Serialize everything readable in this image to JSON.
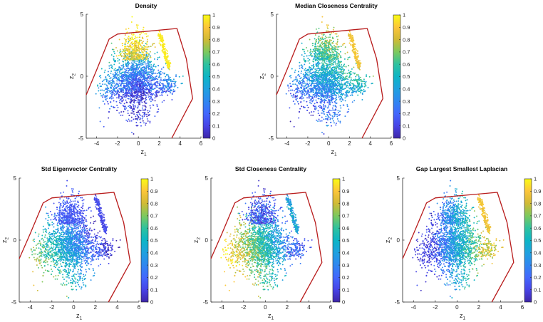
{
  "chart_data": [
    {
      "type": "scatter",
      "title": "Density",
      "xlabel": "z",
      "xlabel_sub": "1",
      "ylabel": "z",
      "ylabel_sub": "2",
      "xlim": [
        -5,
        6
      ],
      "ylim": [
        -5,
        5
      ],
      "xticks": [
        "-4",
        "-2",
        "0",
        "2",
        "4",
        "6"
      ],
      "yticks": [
        "-5",
        "0",
        "5"
      ],
      "colorbar_ticks": [
        "0",
        "0.1",
        "0.2",
        "0.3",
        "0.4",
        "0.5",
        "0.6",
        "0.7",
        "0.8",
        "0.9",
        "1"
      ],
      "boundary": [
        [
          -5.0,
          -1.5
        ],
        [
          -4.0,
          0.5
        ],
        [
          -2.8,
          3.0
        ],
        [
          -2.0,
          3.4
        ],
        [
          3.7,
          3.85
        ],
        [
          4.6,
          1.4
        ],
        [
          5.2,
          -1.8
        ],
        [
          3.2,
          -5.0
        ]
      ],
      "color_mode": "density"
    },
    {
      "type": "scatter",
      "title": "Median Closeness Centrality",
      "xlabel": "z",
      "xlabel_sub": "1",
      "ylabel": "z",
      "ylabel_sub": "2",
      "xlim": [
        -5,
        6
      ],
      "ylim": [
        -5,
        5
      ],
      "xticks": [
        "-4",
        "-2",
        "0",
        "2",
        "4",
        "6"
      ],
      "yticks": [
        "-5",
        "0",
        "5"
      ],
      "colorbar_ticks": [
        "0",
        "0.1",
        "0.2",
        "0.3",
        "0.4",
        "0.5",
        "0.6",
        "0.7",
        "0.8",
        "0.9",
        "1"
      ],
      "boundary": [
        [
          -5.0,
          -1.5
        ],
        [
          -4.0,
          0.5
        ],
        [
          -2.8,
          3.0
        ],
        [
          -2.0,
          3.4
        ],
        [
          3.7,
          3.85
        ],
        [
          4.6,
          1.4
        ],
        [
          5.2,
          -1.8
        ],
        [
          3.2,
          -5.0
        ]
      ],
      "color_mode": "closeness"
    },
    {
      "type": "scatter",
      "title": "Std Eigenvector Centrality",
      "xlabel": "z",
      "xlabel_sub": "1",
      "ylabel": "z",
      "ylabel_sub": "2",
      "xlim": [
        -5,
        6
      ],
      "ylim": [
        -5,
        5
      ],
      "xticks": [
        "-4",
        "-2",
        "0",
        "2",
        "4",
        "6"
      ],
      "yticks": [
        "-5",
        "0",
        "5"
      ],
      "colorbar_ticks": [
        "0",
        "0.1",
        "0.2",
        "0.3",
        "0.4",
        "0.5",
        "0.6",
        "0.7",
        "0.8",
        "0.9",
        "1"
      ],
      "boundary": [
        [
          -5.0,
          -1.5
        ],
        [
          -4.0,
          0.5
        ],
        [
          -2.8,
          3.0
        ],
        [
          -2.0,
          3.4
        ],
        [
          3.7,
          3.85
        ],
        [
          4.6,
          1.4
        ],
        [
          5.2,
          -1.8
        ],
        [
          3.2,
          -5.0
        ]
      ],
      "color_mode": "eigen"
    },
    {
      "type": "scatter",
      "title": "Std Closeness Centrality",
      "xlabel": "z",
      "xlabel_sub": "1",
      "ylabel": "z",
      "ylabel_sub": "2",
      "xlim": [
        -5,
        6
      ],
      "ylim": [
        -5,
        5
      ],
      "xticks": [
        "-4",
        "-2",
        "0",
        "2",
        "4",
        "6"
      ],
      "yticks": [
        "-5",
        "0",
        "5"
      ],
      "colorbar_ticks": [
        "0",
        "0.1",
        "0.2",
        "0.3",
        "0.4",
        "0.5",
        "0.6",
        "0.7",
        "0.8",
        "0.9",
        "1"
      ],
      "boundary": [
        [
          -5.0,
          -1.5
        ],
        [
          -4.0,
          0.5
        ],
        [
          -2.8,
          3.0
        ],
        [
          -2.0,
          3.4
        ],
        [
          3.7,
          3.85
        ],
        [
          4.6,
          1.4
        ],
        [
          5.2,
          -1.8
        ],
        [
          3.2,
          -5.0
        ]
      ],
      "color_mode": "stdclose"
    },
    {
      "type": "scatter",
      "title": "Gap Largest Smallest Laplacian",
      "xlabel": "z",
      "xlabel_sub": "1",
      "ylabel": "z",
      "ylabel_sub": "2",
      "xlim": [
        -5,
        6
      ],
      "ylim": [
        -5,
        5
      ],
      "xticks": [
        "-4",
        "-2",
        "0",
        "2",
        "4",
        "6"
      ],
      "yticks": [
        "-5",
        "0",
        "5"
      ],
      "colorbar_ticks": [
        "0",
        "0.1",
        "0.2",
        "0.3",
        "0.4",
        "0.5",
        "0.6",
        "0.7",
        "0.8",
        "0.9",
        "1"
      ],
      "boundary": [
        [
          -5.0,
          -1.5
        ],
        [
          -4.0,
          0.5
        ],
        [
          -2.8,
          3.0
        ],
        [
          -2.0,
          3.4
        ],
        [
          3.7,
          3.85
        ],
        [
          4.6,
          1.4
        ],
        [
          5.2,
          -1.8
        ],
        [
          3.2,
          -5.0
        ]
      ],
      "color_mode": "laplacian"
    }
  ]
}
